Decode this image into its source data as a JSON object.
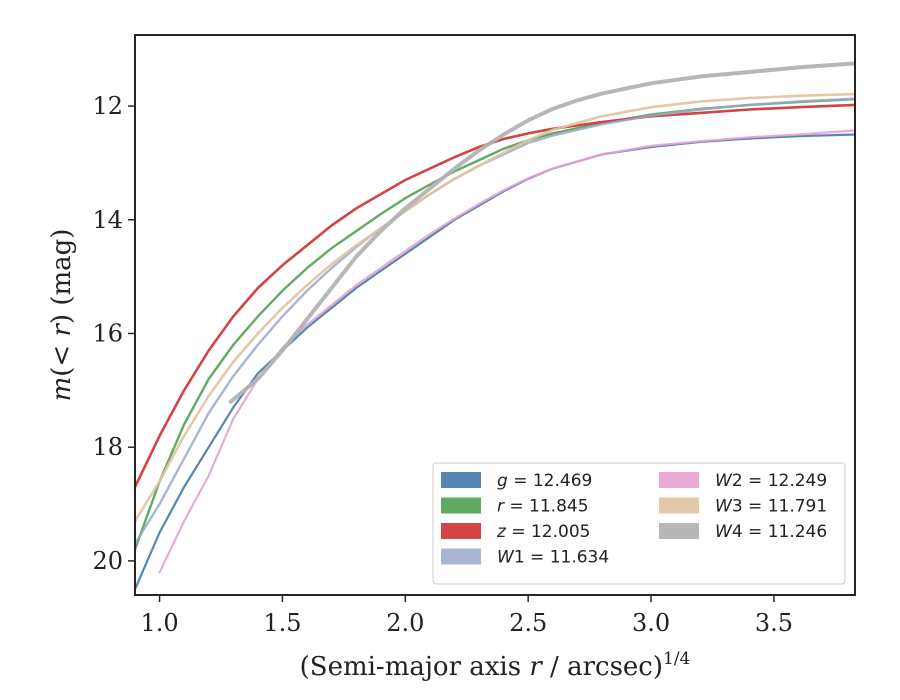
{
  "chart_data": {
    "type": "line",
    "xlabel": "(Semi-major axis r / arcsec)^1/4",
    "ylabel": "m(< r) (mag)",
    "xlim": [
      0.9,
      3.83
    ],
    "ylim": [
      20.6,
      10.75
    ],
    "y_inverted": true,
    "grid": false,
    "legend_placement": "lower-right",
    "x_ticks": [
      "1.0",
      "1.5",
      "2.0",
      "2.5",
      "3.0",
      "3.5"
    ],
    "y_ticks": [
      "12",
      "14",
      "16",
      "18",
      "20"
    ],
    "series": [
      {
        "name": "g = 12.469",
        "color": "#4c7fb0",
        "x": [
          0.9,
          1.0,
          1.1,
          1.2,
          1.3,
          1.4,
          1.5,
          1.6,
          1.7,
          1.8,
          1.9,
          2.0,
          2.1,
          2.2,
          2.3,
          2.4,
          2.5,
          2.6,
          2.8,
          3.0,
          3.2,
          3.4,
          3.6,
          3.83
        ],
        "y": [
          20.5,
          19.5,
          18.7,
          18.0,
          17.3,
          16.7,
          16.3,
          15.9,
          15.55,
          15.2,
          14.9,
          14.6,
          14.3,
          14.0,
          13.75,
          13.5,
          13.28,
          13.1,
          12.85,
          12.72,
          12.63,
          12.57,
          12.53,
          12.5
        ]
      },
      {
        "name": "r = 11.845",
        "color": "#5aa55a",
        "x": [
          0.9,
          1.0,
          1.1,
          1.2,
          1.3,
          1.4,
          1.5,
          1.6,
          1.7,
          1.8,
          1.9,
          2.0,
          2.1,
          2.2,
          2.3,
          2.4,
          2.5,
          2.6,
          2.8,
          3.0,
          3.2,
          3.4,
          3.6,
          3.83
        ],
        "y": [
          19.8,
          18.6,
          17.6,
          16.8,
          16.2,
          15.7,
          15.25,
          14.85,
          14.5,
          14.2,
          13.9,
          13.62,
          13.38,
          13.15,
          12.95,
          12.75,
          12.6,
          12.48,
          12.3,
          12.15,
          12.05,
          11.98,
          11.93,
          11.88
        ]
      },
      {
        "name": "z = 12.005",
        "color": "#d03b3b",
        "x": [
          0.9,
          1.0,
          1.1,
          1.2,
          1.3,
          1.4,
          1.5,
          1.6,
          1.7,
          1.8,
          1.9,
          2.0,
          2.1,
          2.2,
          2.3,
          2.4,
          2.5,
          2.6,
          2.8,
          3.0,
          3.2,
          3.4,
          3.6,
          3.83
        ],
        "y": [
          18.7,
          17.8,
          17.0,
          16.3,
          15.7,
          15.2,
          14.8,
          14.45,
          14.1,
          13.8,
          13.55,
          13.3,
          13.1,
          12.9,
          12.72,
          12.58,
          12.48,
          12.4,
          12.28,
          12.18,
          12.12,
          12.06,
          12.02,
          11.98
        ]
      },
      {
        "name": "W1 = 11.634",
        "color": "#9aa8c9",
        "x": [
          0.9,
          1.0,
          1.1,
          1.2,
          1.3,
          1.4,
          1.5,
          1.6,
          1.7,
          1.8,
          1.9,
          2.0,
          2.1,
          2.2,
          2.3,
          2.4,
          2.5,
          2.6,
          2.8,
          3.0,
          3.2,
          3.4,
          3.6,
          3.83
        ],
        "y": [
          19.7,
          19.0,
          18.2,
          17.4,
          16.75,
          16.2,
          15.7,
          15.25,
          14.85,
          14.48,
          14.15,
          13.85,
          13.55,
          13.28,
          13.05,
          12.85,
          12.65,
          12.52,
          12.32,
          12.17,
          12.06,
          11.98,
          11.92,
          11.87
        ]
      },
      {
        "name": "W2 = 12.249",
        "color": "#e6a3cf",
        "x": [
          1.0,
          1.1,
          1.2,
          1.3,
          1.4,
          1.5,
          1.6,
          1.7,
          1.8,
          1.9,
          2.0,
          2.1,
          2.2,
          2.3,
          2.4,
          2.5,
          2.6,
          2.8,
          3.0,
          3.2,
          3.4,
          3.6,
          3.83
        ],
        "y": [
          20.2,
          19.3,
          18.5,
          17.5,
          16.8,
          16.25,
          15.85,
          15.5,
          15.15,
          14.85,
          14.55,
          14.25,
          13.98,
          13.72,
          13.48,
          13.27,
          13.1,
          12.85,
          12.7,
          12.62,
          12.55,
          12.5,
          12.43
        ]
      },
      {
        "name": "W3 = 11.791",
        "color": "#e0c39f",
        "x": [
          0.9,
          1.0,
          1.1,
          1.2,
          1.3,
          1.4,
          1.5,
          1.6,
          1.7,
          1.8,
          1.9,
          2.0,
          2.1,
          2.2,
          2.3,
          2.4,
          2.5,
          2.6,
          2.8,
          3.0,
          3.2,
          3.4,
          3.6,
          3.83
        ],
        "y": [
          19.3,
          18.6,
          17.8,
          17.1,
          16.5,
          16.0,
          15.55,
          15.15,
          14.78,
          14.45,
          14.15,
          13.85,
          13.55,
          13.28,
          13.05,
          12.82,
          12.6,
          12.42,
          12.18,
          12.02,
          11.92,
          11.86,
          11.82,
          11.79
        ]
      },
      {
        "name": "W4 = 11.246",
        "color": "#b3b3b3",
        "x": [
          1.29,
          1.4,
          1.5,
          1.6,
          1.7,
          1.8,
          1.9,
          2.0,
          2.1,
          2.2,
          2.3,
          2.4,
          2.5,
          2.6,
          2.7,
          2.8,
          3.0,
          3.2,
          3.4,
          3.6,
          3.83
        ],
        "y": [
          17.2,
          16.8,
          16.3,
          15.75,
          15.2,
          14.65,
          14.2,
          13.8,
          13.45,
          13.1,
          12.78,
          12.5,
          12.25,
          12.05,
          11.9,
          11.78,
          11.6,
          11.48,
          11.4,
          11.32,
          11.25
        ]
      }
    ]
  }
}
